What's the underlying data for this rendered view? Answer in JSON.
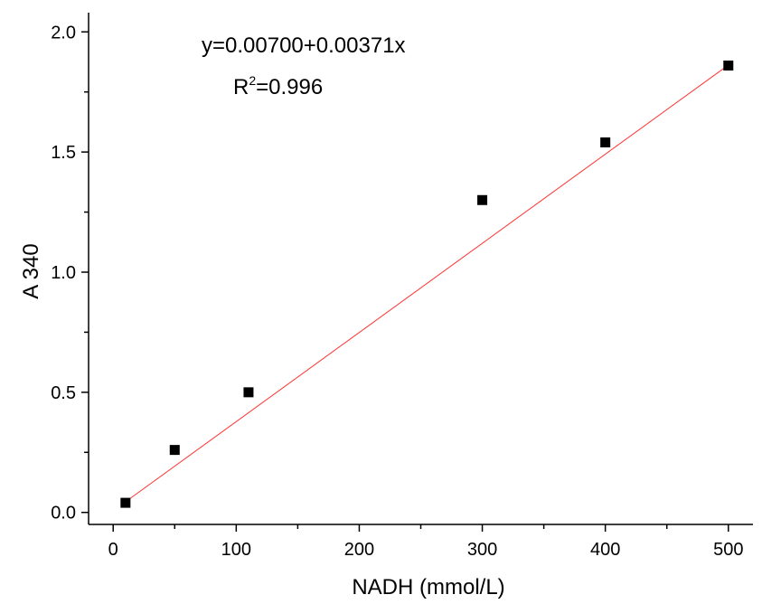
{
  "chart_data": {
    "type": "scatter",
    "xlabel": "NADH (mmol/L)",
    "ylabel": "A 340",
    "xlim": [
      -20,
      520
    ],
    "ylim": [
      -0.05,
      2.08
    ],
    "x_ticks": [
      0,
      100,
      200,
      300,
      400,
      500
    ],
    "x_tick_labels": [
      "0",
      "100",
      "200",
      "300",
      "400",
      "500"
    ],
    "y_ticks": [
      0.0,
      0.5,
      1.0,
      1.5,
      2.0
    ],
    "y_tick_labels": [
      "0.0",
      "0.5",
      "1.0",
      "1.5",
      "2.0"
    ],
    "grid": false,
    "series": [
      {
        "type": "scatter",
        "marker": "square",
        "color": "#000000",
        "x": [
          10,
          50,
          110,
          300,
          400,
          500
        ],
        "y": [
          0.04,
          0.26,
          0.5,
          1.3,
          1.54,
          1.86
        ]
      },
      {
        "type": "line",
        "color": "#ff3333",
        "intercept": 0.007,
        "slope": 0.00371,
        "x_range": [
          10,
          500
        ]
      }
    ],
    "annotations": {
      "equation": "y=0.00700+0.00371x",
      "r2_prefix": "R",
      "r2_sup": "2",
      "r2_value": "=0.996"
    }
  }
}
